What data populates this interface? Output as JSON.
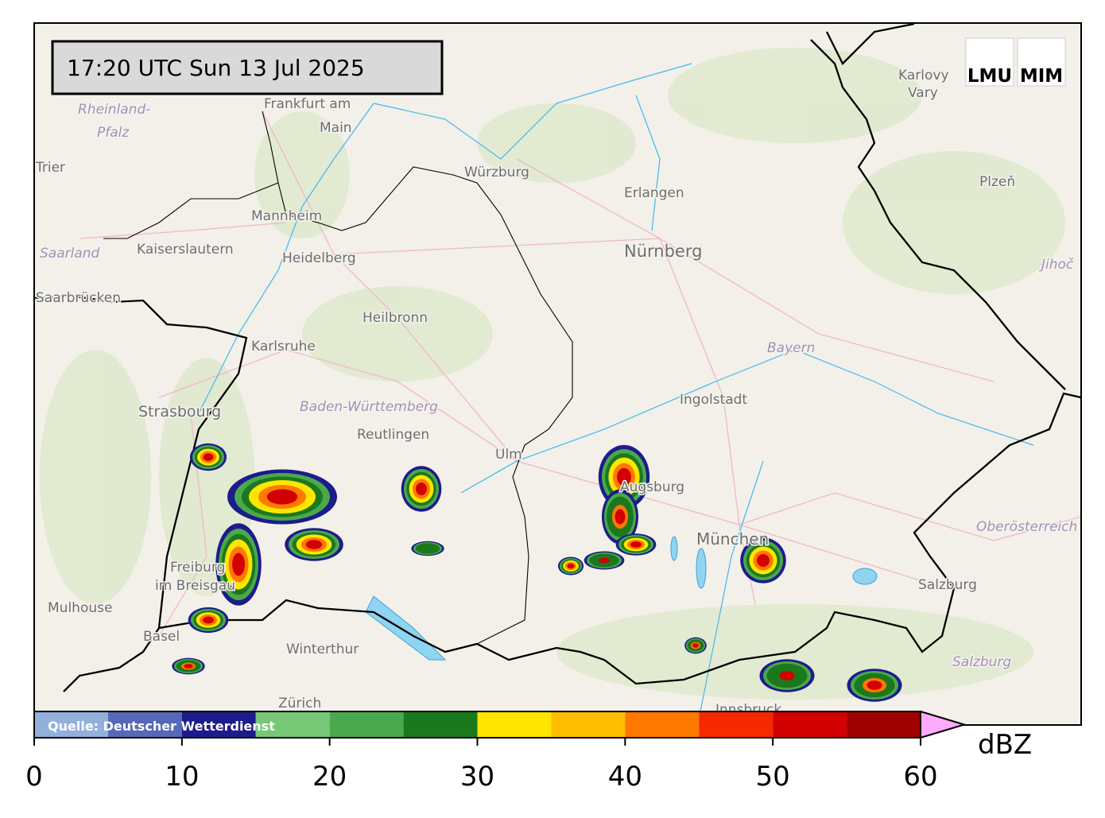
{
  "timestamp": "17:20 UTC  Sun 13 Jul 2025",
  "logo": {
    "left": "LMU",
    "right": "MIM"
  },
  "source": "Quelle: Deutscher Wetterdienst",
  "places": [
    "Frankfurt am",
    "Main",
    "Rheinland-",
    "Pfalz",
    "Trier",
    "Würzburg",
    "Erlangen",
    "Nürnberg",
    "Mannheim",
    "Kaiserslautern",
    "Heidelberg",
    "Saarland",
    "Saarbrücken",
    "Heilbronn",
    "Karlsruhe",
    "Bayern",
    "Ingolstadt",
    "Strasbourg",
    "Baden-Württemberg",
    "Reutlingen",
    "Ulm",
    "Augsburg",
    "München",
    "Oberösterreich",
    "Freiburg",
    "im Breisgau",
    "Mulhouse",
    "Basel",
    "Winterthur",
    "Zürich",
    "Salzburg",
    "Salzburg",
    "Karlovy",
    "Vary",
    "Plzeň",
    "Jihoč",
    "Innsbruck"
  ],
  "colorbar": {
    "label": "dBZ",
    "bins": [
      0,
      5,
      10,
      15,
      20,
      25,
      30,
      35,
      40,
      45,
      50,
      55,
      60
    ],
    "colors": [
      "#93b0dc",
      "#5868b8",
      "#1c1c8c",
      "#78c878",
      "#4ca84c",
      "#1c781c",
      "#ffe600",
      "#ffbe00",
      "#ff7800",
      "#f52800",
      "#d20000",
      "#a00000"
    ],
    "extend_color": "#ffaaff",
    "ticks": [
      0,
      10,
      20,
      30,
      40,
      50,
      60
    ]
  }
}
